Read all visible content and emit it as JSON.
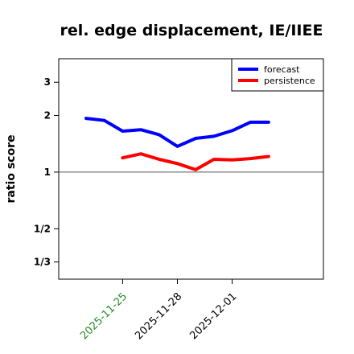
{
  "chart_data": {
    "type": "line",
    "title": "rel. edge displacement, IE/IIEE",
    "ylabel": "ratio score",
    "xlabel": "",
    "yscale": "log",
    "ylim": [
      0.27,
      4.0
    ],
    "xlim": [
      "2025-11-21T12:00",
      "2025-12-06"
    ],
    "yticks": [
      {
        "value": 3,
        "label": "3"
      },
      {
        "value": 2,
        "label": "2"
      },
      {
        "value": 1,
        "label": "1"
      },
      {
        "value": 0.5,
        "label": "1/2"
      },
      {
        "value": 0.3333,
        "label": "1/3"
      }
    ],
    "xticks": [
      {
        "value": "2025-11-25",
        "label": "2025-11-25",
        "color": "#228b22"
      },
      {
        "value": "2025-11-28",
        "label": "2025-11-28",
        "color": "#000000"
      },
      {
        "value": "2025-12-01",
        "label": "2025-12-01",
        "color": "#000000"
      }
    ],
    "reference_line": 1,
    "legend": {
      "position": "top-right"
    },
    "series": [
      {
        "name": "forecast",
        "color": "#0000ff",
        "x": [
          "2025-11-23",
          "2025-11-24",
          "2025-11-25",
          "2025-11-26",
          "2025-11-27",
          "2025-11-28",
          "2025-11-29",
          "2025-11-30",
          "2025-12-01",
          "2025-12-02",
          "2025-12-03"
        ],
        "y": [
          1.93,
          1.88,
          1.65,
          1.68,
          1.58,
          1.37,
          1.51,
          1.55,
          1.66,
          1.84,
          1.84
        ]
      },
      {
        "name": "persistence",
        "color": "#ff0000",
        "x": [
          "2025-11-25",
          "2025-11-26",
          "2025-11-27",
          "2025-11-28",
          "2025-11-29",
          "2025-11-30",
          "2025-12-01",
          "2025-12-02",
          "2025-12-03"
        ],
        "y": [
          1.19,
          1.25,
          1.17,
          1.11,
          1.03,
          1.17,
          1.16,
          1.18,
          1.21
        ]
      }
    ]
  }
}
